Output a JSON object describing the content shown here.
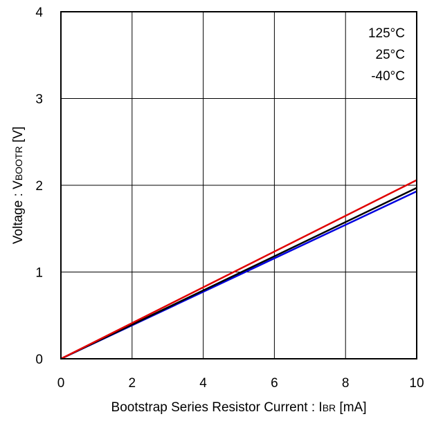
{
  "chart_data": {
    "type": "line",
    "title": "",
    "xlabel": {
      "prefix": "Bootstrap Series Resistor Current : I",
      "subscript": "BR",
      "suffix": " [mA]"
    },
    "ylabel": {
      "prefix": "Voltage : V",
      "subscript": "BOOTR",
      "suffix": " [V]"
    },
    "xlim": [
      0,
      10
    ],
    "ylim": [
      0,
      4
    ],
    "x_ticks": [
      "0",
      "2",
      "4",
      "6",
      "8",
      "10"
    ],
    "y_ticks": [
      "0",
      "1",
      "2",
      "3",
      "4"
    ],
    "grid": true,
    "legend_position": "top-right",
    "series": [
      {
        "name": "125°C",
        "color": "#e00000",
        "x": [
          0,
          10
        ],
        "y": [
          0,
          2.06
        ]
      },
      {
        "name": "25°C",
        "color": "#000000",
        "x": [
          0,
          10
        ],
        "y": [
          0,
          1.97
        ]
      },
      {
        "name": "-40°C",
        "color": "#0000e0",
        "x": [
          0,
          10
        ],
        "y": [
          0,
          1.93
        ]
      }
    ]
  }
}
